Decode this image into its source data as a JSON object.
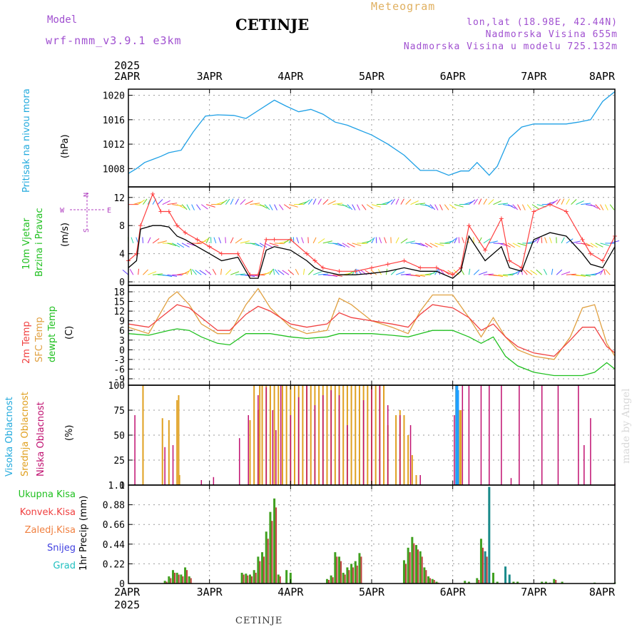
{
  "header": {
    "model_label": "Model",
    "model_name": "wrf-nmm_v3.9.1 e3km",
    "title": "CETINJE",
    "meteogram": "Meteogram",
    "lonlat": "lon,lat (18.98E, 42.44N)",
    "altitude": "Nadmorska Visina 655m",
    "model_altitude": "Nadmorska Visina u modelu 725.132m"
  },
  "footer": {
    "station": "CETINJE"
  },
  "signature": "made by Angel",
  "x_axis": {
    "year": "2025",
    "ticks": [
      "2APR",
      "3APR",
      "4APR",
      "5APR",
      "6APR",
      "7APR",
      "8APR"
    ]
  },
  "wind_compass": {
    "north": "N",
    "west": "W",
    "east": "E",
    "south": "S"
  },
  "colors": {
    "pressure": "#1ea0e6",
    "wind_speed": "#000000",
    "gust": "#ff4040",
    "temp_2m": "#f04040",
    "temp_sfc": "#e0a040",
    "dewpoint": "#20c020",
    "cloud_high": "#20a0ff",
    "cloud_mid": "#e0a020",
    "cloud_low": "#c01070",
    "precip_total": "#40a020",
    "precip_conv": "#c04040",
    "precip_snow": "#1a8a8a",
    "label_cyan": "#22aadd",
    "label_purple": "#b040c0"
  },
  "chart_data": [
    {
      "type": "line",
      "title": "Pritisak na nivou mora",
      "ylabel": "(hPa)",
      "ylim": [
        1005,
        1021
      ],
      "yticks": [
        "1008",
        "1012",
        "1016",
        "1020"
      ],
      "x_days": [
        0,
        0.1,
        0.2,
        0.3,
        0.4,
        0.5,
        0.65,
        0.8,
        0.95,
        1.1,
        1.3,
        1.45,
        1.6,
        1.8,
        1.95,
        2.1,
        2.25,
        2.4,
        2.55,
        2.7,
        2.85,
        3.0,
        3.2,
        3.4,
        3.6,
        3.8,
        3.95,
        4.1,
        4.2,
        4.3,
        4.45,
        4.55,
        4.7,
        4.85,
        5.0,
        5.2,
        5.4,
        5.55,
        5.7,
        5.85,
        6.0
      ],
      "series": [
        {
          "name": "MSLP",
          "values": [
            1007.2,
            1008,
            1009,
            1009.5,
            1010,
            1010.6,
            1011,
            1014,
            1016.6,
            1016.8,
            1016.7,
            1016.2,
            1017.5,
            1019.2,
            1018.2,
            1017.3,
            1017.7,
            1016.9,
            1015.6,
            1015.1,
            1014.3,
            1013.5,
            1012,
            1010.2,
            1007.7,
            1007.7,
            1006.9,
            1007.6,
            1007.6,
            1009,
            1006.9,
            1008.4,
            1013,
            1014.8,
            1015.3,
            1015.3,
            1015.3,
            1015.6,
            1016,
            1019,
            1020.6
          ]
        }
      ]
    },
    {
      "type": "line",
      "title": "10m Vjetar Brzina i Pravac",
      "ylabel": "(m/s)",
      "ylim": [
        -0.5,
        13.5
      ],
      "yticks": [
        "0",
        "4",
        "8",
        "12"
      ],
      "x_days": [
        0,
        0.1,
        0.15,
        0.3,
        0.4,
        0.5,
        0.6,
        0.7,
        0.85,
        1.0,
        1.15,
        1.35,
        1.5,
        1.6,
        1.7,
        1.8,
        2.0,
        2.2,
        2.3,
        2.4,
        2.6,
        2.8,
        3.0,
        3.2,
        3.4,
        3.6,
        3.8,
        4.0,
        4.1,
        4.2,
        4.4,
        4.6,
        4.7,
        4.85,
        5.0,
        5.2,
        5.4,
        5.6,
        5.7,
        5.85,
        6.0
      ],
      "series": [
        {
          "name": "Wind speed",
          "values": [
            2,
            3,
            7.5,
            8,
            8,
            7.8,
            6.5,
            6,
            5,
            4,
            3,
            3.5,
            0.5,
            0.5,
            4.5,
            5,
            4.5,
            3,
            2,
            1.5,
            1,
            1,
            1.2,
            1.5,
            2,
            1.5,
            1.5,
            0.5,
            1.5,
            6.5,
            3,
            5,
            2,
            1.5,
            6,
            7,
            6.5,
            4,
            2.5,
            2,
            5
          ]
        },
        {
          "name": "Gust",
          "values": [
            3,
            4,
            8,
            12.5,
            10,
            10,
            8,
            7,
            6,
            5,
            4,
            4,
            1,
            1,
            6,
            6,
            6,
            4,
            3,
            2,
            1.5,
            1.5,
            2,
            2.5,
            3,
            2,
            2,
            1,
            2,
            8,
            4.5,
            9,
            3,
            2,
            10,
            11,
            10,
            6,
            4,
            3,
            6.5
          ]
        }
      ]
    },
    {
      "type": "line",
      "title": "2m Temp / SFC Temp / dewpt Temp",
      "ylabel": "(C)",
      "ylim": [
        -11,
        20
      ],
      "yticks": [
        "-9",
        "-6",
        "-3",
        "0",
        "3",
        "6",
        "9",
        "12",
        "15",
        "18"
      ],
      "x_days": [
        0,
        0.25,
        0.5,
        0.6,
        0.75,
        0.9,
        1.1,
        1.25,
        1.45,
        1.6,
        1.75,
        2.0,
        2.2,
        2.45,
        2.6,
        2.75,
        3.0,
        3.25,
        3.45,
        3.6,
        3.75,
        4.0,
        4.2,
        4.35,
        4.5,
        4.65,
        4.8,
        5.0,
        5.25,
        5.45,
        5.6,
        5.75,
        5.9,
        6.0
      ],
      "series": [
        {
          "name": "2m Temp",
          "values": [
            8,
            7,
            12,
            14,
            13,
            10,
            6,
            6,
            11,
            13.5,
            12,
            8,
            7,
            8,
            11.5,
            10,
            9,
            8,
            7,
            11,
            14,
            13,
            10,
            6,
            8,
            4,
            1,
            -1,
            -2,
            3,
            7,
            7,
            1,
            -1
          ]
        },
        {
          "name": "SFC Temp",
          "values": [
            7,
            5,
            16,
            18,
            14,
            8,
            5,
            5,
            14,
            19,
            13,
            7,
            5,
            6,
            16,
            14,
            9,
            7,
            5,
            12,
            17,
            17,
            10,
            4,
            10,
            4,
            0,
            -2,
            -3,
            4,
            13,
            14,
            2,
            -2
          ]
        },
        {
          "name": "dewpt Temp",
          "values": [
            5,
            4.5,
            6,
            6.5,
            6,
            4,
            2,
            1.5,
            5,
            5,
            5,
            4,
            3.5,
            4,
            5,
            5,
            5,
            4.5,
            4,
            5,
            6,
            6,
            4,
            2,
            4,
            -2,
            -5,
            -7,
            -8,
            -8,
            -8,
            -7,
            -4,
            -6
          ]
        }
      ]
    },
    {
      "type": "bar",
      "title": "Visoka Oblacnost / Srednja Oblacnost / Niska Oblacnost",
      "ylabel": "(%)",
      "ylim": [
        0,
        100
      ],
      "yticks": [
        "0",
        "25",
        "50",
        "75",
        "100"
      ],
      "series": [
        {
          "name": "Visoka Oblacnost",
          "x_days": [
            4.05,
            4.06
          ],
          "values": [
            100,
            95
          ]
        },
        {
          "name": "Srednja Oblacnost",
          "x_days": [
            0.18,
            0.42,
            0.5,
            0.6,
            0.62,
            0.63,
            1.5,
            1.55,
            1.6,
            1.62,
            1.65,
            1.7,
            1.75,
            1.8,
            1.85,
            1.9,
            1.95,
            2.0,
            2.05,
            2.1,
            2.15,
            2.2,
            2.25,
            2.3,
            2.35,
            2.4,
            2.45,
            2.5,
            2.55,
            2.6,
            2.65,
            2.7,
            2.75,
            2.8,
            2.85,
            2.9,
            2.95,
            3.0,
            3.05,
            3.1,
            3.15,
            3.2,
            3.3,
            3.35,
            3.4,
            3.45,
            3.5,
            3.55,
            4.04,
            4.08,
            4.1
          ],
          "values": [
            100,
            67,
            65,
            85,
            90,
            10,
            65,
            100,
            75,
            100,
            100,
            100,
            100,
            100,
            100,
            100,
            100,
            100,
            100,
            100,
            100,
            100,
            100,
            100,
            100,
            100,
            100,
            100,
            100,
            100,
            100,
            100,
            100,
            100,
            100,
            100,
            100,
            100,
            100,
            100,
            100,
            60,
            70,
            75,
            70,
            50,
            30,
            10,
            100,
            75,
            75
          ]
        },
        {
          "name": "Niska Oblacnost",
          "x_days": [
            0.08,
            0.45,
            0.55,
            0.9,
            1.05,
            1.37,
            1.48,
            1.6,
            1.7,
            1.78,
            1.82,
            1.88,
            2.0,
            2.1,
            2.2,
            2.3,
            2.4,
            2.5,
            2.6,
            2.7,
            2.9,
            3.0,
            3.1,
            3.2,
            3.35,
            3.48,
            3.6,
            4.02,
            4.12,
            4.2,
            4.35,
            4.45,
            4.6,
            4.72,
            4.82,
            5.1,
            5.3,
            5.55,
            5.62,
            5.7,
            6.0
          ],
          "values": [
            70,
            38,
            40,
            5,
            8,
            47,
            70,
            90,
            98,
            75,
            55,
            100,
            70,
            88,
            100,
            80,
            90,
            95,
            90,
            60,
            85,
            100,
            100,
            80,
            70,
            60,
            10,
            70,
            100,
            100,
            100,
            100,
            100,
            7,
            100,
            100,
            100,
            100,
            40,
            67,
            2
          ]
        }
      ]
    },
    {
      "type": "bar",
      "title": "Ukupna Kisa / Konvek.Kisa / Zaledj.Kisa / Snijeg / Grad",
      "ylabel": "1hr Precip (mm)",
      "ylim": [
        0,
        1.1
      ],
      "yticks": [
        "0",
        "0.22",
        "0.44",
        "0.66",
        "0.88",
        "1.1"
      ],
      "x_days": [
        0.45,
        0.5,
        0.55,
        0.6,
        0.65,
        0.7,
        0.75,
        1.4,
        1.45,
        1.5,
        1.55,
        1.6,
        1.65,
        1.7,
        1.75,
        1.8,
        1.85,
        1.95,
        2.0,
        2.45,
        2.5,
        2.55,
        2.6,
        2.65,
        2.7,
        2.75,
        2.8,
        2.85,
        3.4,
        3.45,
        3.5,
        3.55,
        3.6,
        3.65,
        3.7,
        3.75,
        3.8,
        4.15,
        4.2,
        4.3,
        4.35,
        4.4,
        4.45,
        4.5,
        4.55,
        4.65,
        4.7,
        4.75,
        4.8,
        5.1,
        5.15,
        5.2,
        5.25,
        5.35,
        5.75,
        6.0
      ],
      "series": [
        {
          "name": "Ukupna Kisa",
          "values": [
            0.03,
            0.08,
            0.15,
            0.12,
            0.1,
            0.18,
            0.08,
            0.12,
            0.11,
            0.1,
            0.15,
            0.3,
            0.35,
            0.58,
            0.8,
            0.95,
            0.1,
            0.15,
            0.12,
            0.05,
            0.09,
            0.35,
            0.3,
            0.12,
            0.18,
            0.22,
            0.25,
            0.34,
            0.26,
            0.4,
            0.52,
            0.43,
            0.36,
            0.18,
            0.08,
            0.05,
            0.02,
            0.03,
            0.02,
            0.06,
            0.5,
            0.36,
            1.08,
            0.12,
            0.02,
            0.19,
            0.1,
            0.02,
            0.02,
            0.02,
            0.02,
            0.01,
            0.05,
            0.02,
            0.01,
            0.01
          ]
        },
        {
          "name": "Konvek.Kisa",
          "values": [
            0.02,
            0.06,
            0.12,
            0.1,
            0.08,
            0.15,
            0.06,
            0.1,
            0.09,
            0.08,
            0.12,
            0.25,
            0.3,
            0.5,
            0.7,
            0.85,
            0.08,
            0,
            0,
            0.04,
            0.07,
            0.3,
            0.25,
            0.1,
            0.15,
            0.18,
            0.2,
            0.3,
            0.22,
            0.35,
            0.45,
            0.38,
            0.3,
            0.15,
            0.06,
            0.04,
            0.01,
            0,
            0,
            0.04,
            0.4,
            0.3,
            0,
            0,
            0,
            0,
            0,
            0,
            0,
            0,
            0,
            0,
            0.04,
            0,
            0,
            0
          ]
        },
        {
          "name": "Snijeg",
          "values": [
            0,
            0,
            0,
            0,
            0,
            0,
            0,
            0,
            0,
            0,
            0,
            0,
            0,
            0,
            0,
            0,
            0,
            0,
            0,
            0,
            0,
            0,
            0,
            0,
            0,
            0,
            0,
            0,
            0,
            0,
            0,
            0,
            0,
            0,
            0,
            0,
            0,
            0,
            0,
            0,
            0,
            0.36,
            1.08,
            0,
            0,
            0.19,
            0.1,
            0,
            0,
            0,
            0,
            0,
            0,
            0,
            0,
            0
          ]
        }
      ]
    }
  ],
  "labels": {
    "p1": {
      "title": "Pritisak na nivou mora",
      "unit": "(hPa)"
    },
    "p2": {
      "line1": "10m Vjetar",
      "line2": "Brzina i Pravac",
      "unit": "(m/s)"
    },
    "p3": {
      "l1": "2m Temp",
      "l2": "SFC Temp",
      "l3": "dewpt Temp",
      "unit": "(C)"
    },
    "p4": {
      "l1": "Visoka Oblacnost",
      "l2": "Srednja Oblacnost",
      "l3": "Niska Oblacnost",
      "unit": "(%)"
    },
    "p5": {
      "l1": "Ukupna Kisa",
      "l2": "Konvek.Kisa",
      "l3": "Zaledj.Kisa",
      "l4": "Snijeg",
      "l5": "Grad",
      "unit": "1hr Precip (mm)"
    }
  }
}
